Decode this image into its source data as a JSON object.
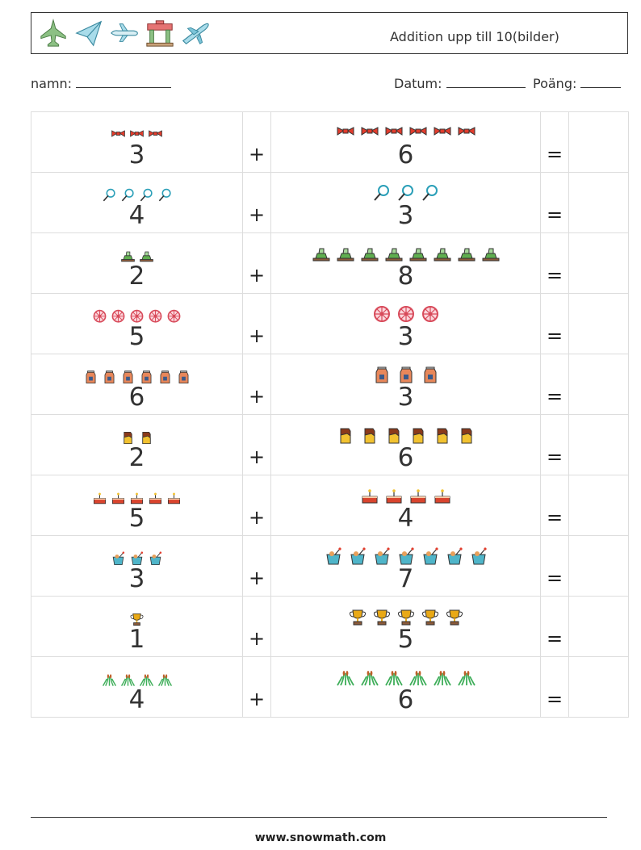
{
  "header": {
    "title": "Addition upp till 10(bilder)",
    "icons": [
      "fighter-jet-icon",
      "paper-plane-icon",
      "airplane-icon",
      "gate-icon",
      "jet-plane-icon"
    ]
  },
  "meta": {
    "name_label": "namn:",
    "date_label": "Datum:",
    "score_label": "Poäng:"
  },
  "operators": {
    "plus": "+",
    "equals": "="
  },
  "problems": [
    {
      "a": 3,
      "b": 6,
      "icon": "bow-tie-icon",
      "color": "#e23c2c"
    },
    {
      "a": 4,
      "b": 3,
      "icon": "magnifier-icon",
      "color": "#2a9fb8"
    },
    {
      "a": 2,
      "b": 8,
      "icon": "boat-icon",
      "color": "#5fae4f"
    },
    {
      "a": 5,
      "b": 3,
      "icon": "wheel-icon",
      "color": "#d84a5a"
    },
    {
      "a": 6,
      "b": 3,
      "icon": "milk-carton-icon",
      "color": "#e8875a"
    },
    {
      "a": 2,
      "b": 6,
      "icon": "chocolate-icon",
      "color": "#8b3a1a"
    },
    {
      "a": 5,
      "b": 4,
      "icon": "cake-icon",
      "color": "#d9442e"
    },
    {
      "a": 3,
      "b": 7,
      "icon": "sand-bucket-icon",
      "color": "#4fb5c9"
    },
    {
      "a": 1,
      "b": 5,
      "icon": "trophy-icon",
      "color": "#e9a916"
    },
    {
      "a": 4,
      "b": 6,
      "icon": "reed-grass-icon",
      "color": "#3fae5a"
    }
  ],
  "footer": {
    "url": "www.snowmath.com"
  }
}
